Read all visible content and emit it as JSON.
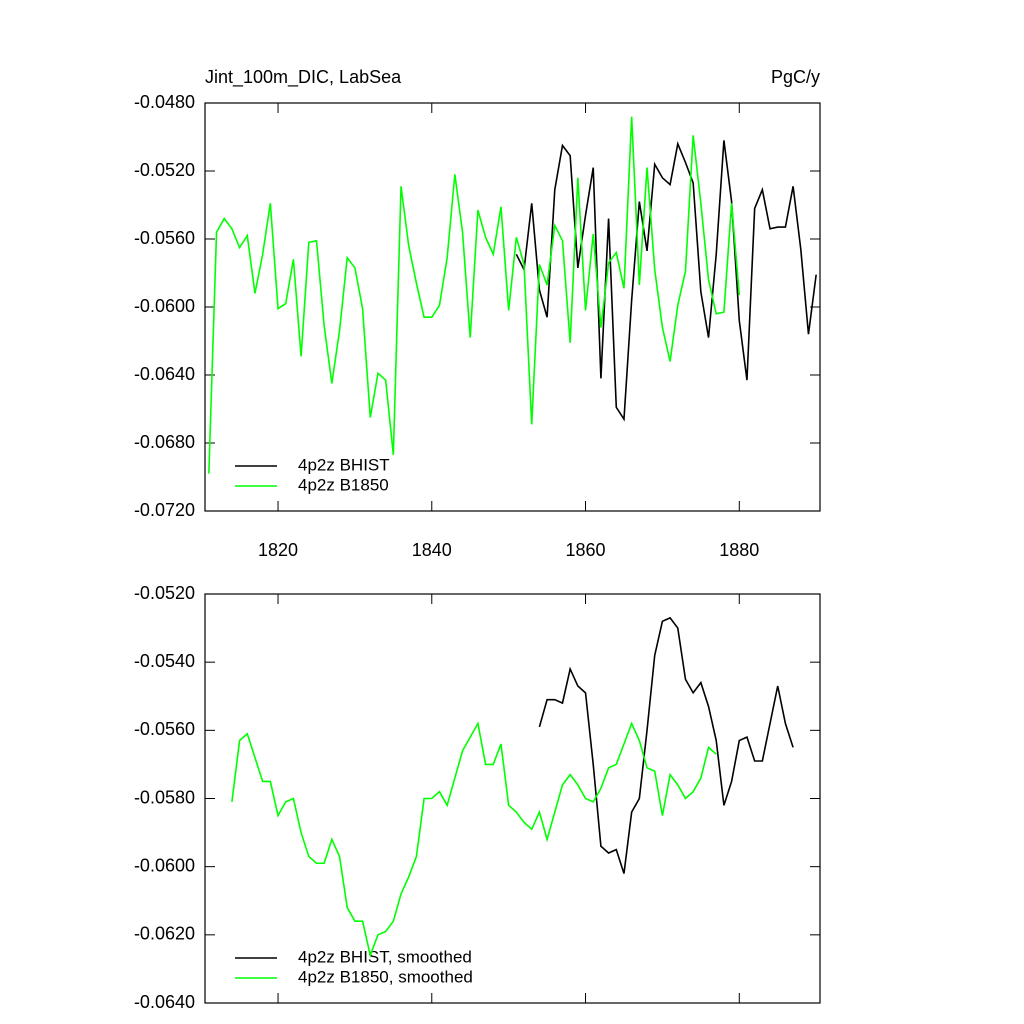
{
  "chart_data": [
    {
      "type": "line",
      "title": "Jint_100m_DIC, LabSea",
      "units": "PgC/y",
      "x": [
        1811,
        1812,
        1813,
        1814,
        1815,
        1816,
        1817,
        1818,
        1819,
        1820,
        1821,
        1822,
        1823,
        1824,
        1825,
        1826,
        1827,
        1828,
        1829,
        1830,
        1831,
        1832,
        1833,
        1834,
        1835,
        1836,
        1837,
        1838,
        1839,
        1840,
        1841,
        1842,
        1843,
        1844,
        1845,
        1846,
        1847,
        1848,
        1849,
        1850,
        1851,
        1852,
        1853,
        1854,
        1855,
        1856,
        1857,
        1858,
        1859,
        1860,
        1861,
        1862,
        1863,
        1864,
        1865,
        1866,
        1867,
        1868,
        1869,
        1870,
        1871,
        1872,
        1873,
        1874,
        1875,
        1876,
        1877,
        1878,
        1879,
        1880,
        1881,
        1882,
        1883,
        1884,
        1885,
        1886,
        1887,
        1888,
        1889,
        1890
      ],
      "series": [
        {
          "name": "4p2z BHIST",
          "color": "#000000",
          "values": [
            null,
            null,
            null,
            null,
            null,
            null,
            null,
            null,
            null,
            null,
            null,
            null,
            null,
            null,
            null,
            null,
            null,
            null,
            null,
            null,
            null,
            null,
            null,
            null,
            null,
            null,
            null,
            null,
            null,
            null,
            null,
            null,
            null,
            null,
            null,
            null,
            null,
            null,
            null,
            null,
            -0.0569,
            -0.0578,
            -0.0539,
            -0.059,
            -0.0606,
            -0.0531,
            -0.0505,
            -0.0511,
            -0.0577,
            -0.0546,
            -0.0518,
            -0.0642,
            -0.0548,
            -0.0659,
            -0.0666,
            -0.0596,
            -0.0538,
            -0.0567,
            -0.0516,
            -0.0524,
            -0.0528,
            -0.0504,
            -0.0515,
            -0.0527,
            -0.0591,
            -0.0618,
            -0.0569,
            -0.0502,
            -0.0538,
            -0.0608,
            -0.0643,
            -0.0542,
            -0.0531,
            -0.0554,
            -0.0553,
            -0.0553,
            -0.0529,
            -0.0566,
            -0.0616,
            -0.0581
          ]
        },
        {
          "name": "4p2z B1850",
          "color": "#00ff00",
          "values": [
            -0.0698,
            -0.0556,
            -0.0548,
            -0.0554,
            -0.0565,
            -0.0558,
            -0.0592,
            -0.0569,
            -0.0539,
            -0.0601,
            -0.0598,
            -0.0572,
            -0.0629,
            -0.0562,
            -0.0561,
            -0.0611,
            -0.0645,
            -0.0614,
            -0.0571,
            -0.0577,
            -0.0601,
            -0.0665,
            -0.0639,
            -0.0643,
            -0.0687,
            -0.0529,
            -0.0564,
            -0.0586,
            -0.0606,
            -0.0606,
            -0.0599,
            -0.0571,
            -0.0522,
            -0.0556,
            -0.0618,
            -0.0543,
            -0.0559,
            -0.0569,
            -0.0541,
            -0.0602,
            -0.0559,
            -0.0575,
            -0.0669,
            -0.0575,
            -0.0587,
            -0.0552,
            -0.0561,
            -0.0621,
            -0.0524,
            -0.0602,
            -0.0557,
            -0.0612,
            -0.0574,
            -0.0568,
            -0.0589,
            -0.0488,
            -0.0587,
            -0.0518,
            -0.0578,
            -0.0612,
            -0.0632,
            -0.0599,
            -0.0579,
            -0.0499,
            -0.0539,
            -0.0584,
            -0.0604,
            -0.0603,
            -0.0539,
            -0.0593,
            null,
            null,
            null,
            null,
            null,
            null,
            null,
            null,
            null,
            null
          ]
        }
      ],
      "xlim": [
        1810.5,
        1890.5
      ],
      "xticks": [
        1820,
        1840,
        1860,
        1880
      ],
      "xtick_labels": true,
      "ylim": [
        -0.072,
        -0.048
      ],
      "yticks": [
        {
          "value": -0.048,
          "label": "-0.0480"
        },
        {
          "value": -0.052,
          "label": "-0.0520"
        },
        {
          "value": -0.056,
          "label": "-0.0560"
        },
        {
          "value": -0.06,
          "label": "-0.0600"
        },
        {
          "value": -0.064,
          "label": "-0.0640"
        },
        {
          "value": -0.068,
          "label": "-0.0680"
        },
        {
          "value": -0.072,
          "label": "-0.0720"
        }
      ],
      "legend": "lower-left"
    },
    {
      "type": "line",
      "x": [
        1811,
        1812,
        1813,
        1814,
        1815,
        1816,
        1817,
        1818,
        1819,
        1820,
        1821,
        1822,
        1823,
        1824,
        1825,
        1826,
        1827,
        1828,
        1829,
        1830,
        1831,
        1832,
        1833,
        1834,
        1835,
        1836,
        1837,
        1838,
        1839,
        1840,
        1841,
        1842,
        1843,
        1844,
        1845,
        1846,
        1847,
        1848,
        1849,
        1850,
        1851,
        1852,
        1853,
        1854,
        1855,
        1856,
        1857,
        1858,
        1859,
        1860,
        1861,
        1862,
        1863,
        1864,
        1865,
        1866,
        1867,
        1868,
        1869,
        1870,
        1871,
        1872,
        1873,
        1874,
        1875,
        1876,
        1877,
        1878,
        1879,
        1880,
        1881,
        1882,
        1883,
        1884,
        1885,
        1886,
        1887,
        1888,
        1889,
        1890
      ],
      "series": [
        {
          "name": "4p2z BHIST, smoothed",
          "color": "#000000",
          "values": [
            null,
            null,
            null,
            null,
            null,
            null,
            null,
            null,
            null,
            null,
            null,
            null,
            null,
            null,
            null,
            null,
            null,
            null,
            null,
            null,
            null,
            null,
            null,
            null,
            null,
            null,
            null,
            null,
            null,
            null,
            null,
            null,
            null,
            null,
            null,
            null,
            null,
            null,
            null,
            null,
            null,
            null,
            null,
            -0.0559,
            -0.0551,
            -0.0551,
            -0.0552,
            -0.0542,
            -0.0547,
            -0.0549,
            -0.057,
            -0.0594,
            -0.0596,
            -0.0595,
            -0.0602,
            -0.0584,
            -0.058,
            -0.056,
            -0.0538,
            -0.0528,
            -0.0527,
            -0.053,
            -0.0545,
            -0.0549,
            -0.0546,
            -0.0553,
            -0.0563,
            -0.0582,
            -0.0575,
            -0.0563,
            -0.0562,
            -0.0569,
            -0.0569,
            -0.0558,
            -0.0547,
            -0.0558,
            -0.0565,
            null,
            null,
            null
          ]
        },
        {
          "name": "4p2z B1850, smoothed",
          "color": "#00ff00",
          "values": [
            null,
            null,
            null,
            -0.0581,
            -0.0563,
            -0.0561,
            -0.0568,
            -0.0575,
            -0.0575,
            -0.0585,
            -0.0581,
            -0.058,
            -0.059,
            -0.0597,
            -0.0599,
            -0.0599,
            -0.0592,
            -0.0597,
            -0.0612,
            -0.0616,
            -0.0616,
            -0.0626,
            -0.062,
            -0.0619,
            -0.0616,
            -0.0608,
            -0.0603,
            -0.0597,
            -0.058,
            -0.058,
            -0.0578,
            -0.0582,
            -0.0574,
            -0.0566,
            -0.0562,
            -0.0558,
            -0.057,
            -0.057,
            -0.0564,
            -0.0582,
            -0.0584,
            -0.0587,
            -0.0589,
            -0.0584,
            -0.0592,
            -0.0584,
            -0.0576,
            -0.0573,
            -0.0576,
            -0.058,
            -0.0581,
            -0.0577,
            -0.0571,
            -0.057,
            -0.0564,
            -0.0558,
            -0.0563,
            -0.0571,
            -0.0572,
            -0.0585,
            -0.0573,
            -0.0576,
            -0.058,
            -0.0578,
            -0.0574,
            -0.0565,
            -0.0567,
            null,
            null,
            null,
            null,
            null,
            null,
            null,
            null,
            null,
            null,
            null,
            null,
            null
          ]
        }
      ],
      "xlim": [
        1810.5,
        1890.5
      ],
      "xticks": [
        1820,
        1840,
        1860,
        1880
      ],
      "xtick_labels": false,
      "ylim": [
        -0.064,
        -0.052
      ],
      "yticks": [
        {
          "value": -0.052,
          "label": "-0.0520"
        },
        {
          "value": -0.054,
          "label": "-0.0540"
        },
        {
          "value": -0.056,
          "label": "-0.0560"
        },
        {
          "value": -0.058,
          "label": "-0.0580"
        },
        {
          "value": -0.06,
          "label": "-0.0600"
        },
        {
          "value": -0.062,
          "label": "-0.0620"
        },
        {
          "value": -0.064,
          "label": "-0.0640"
        }
      ],
      "legend": "lower-left"
    }
  ]
}
